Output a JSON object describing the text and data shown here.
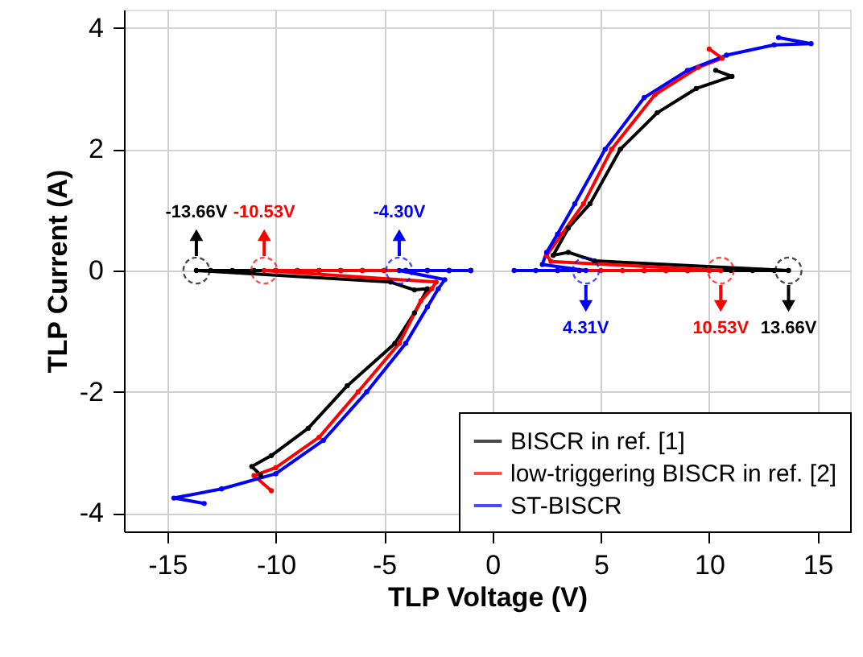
{
  "chart_data": {
    "type": "line",
    "xlabel": "TLP Voltage (V)",
    "ylabel": "TLP Current (A)",
    "xlim": [
      -17,
      16.5
    ],
    "ylim": [
      -4.3,
      4.3
    ],
    "xticks": [
      -15,
      -10,
      -5,
      0,
      5,
      10,
      15
    ],
    "yticks": [
      -4,
      -2,
      0,
      2,
      4
    ],
    "grid": true,
    "legend": "bottom right",
    "marker": "circle",
    "line_style": "solid",
    "series": [
      {
        "name": "BISCR in ref. [1]",
        "color": "#000000",
        "x": [
          7,
          8,
          9,
          10,
          11,
          12,
          13,
          13.66,
          4.7,
          3.5,
          2.8,
          3.5,
          4.5,
          5.9,
          7.6,
          9.4,
          11.05,
          10.3,
          0,
          -1,
          -2,
          -3,
          -4,
          -5,
          -6,
          -7,
          -8,
          -9,
          -10,
          -11,
          -12,
          -13,
          -13.66,
          -4.7,
          -3.6,
          -3.0,
          -3.6,
          -4.5,
          -6.7,
          -8.5,
          -10.2,
          -11.1,
          -10.7
        ],
        "values": [
          0,
          0,
          0,
          0,
          0,
          0,
          0,
          0,
          0.16,
          0.3,
          0.25,
          0.7,
          1.1,
          2.0,
          2.6,
          3.0,
          3.2,
          3.3,
          null,
          0,
          0,
          0,
          0,
          0,
          0,
          0,
          0,
          0,
          0,
          0,
          0,
          0,
          0,
          -0.19,
          -0.32,
          -0.3,
          -0.7,
          -1.2,
          -1.9,
          -2.6,
          -3.05,
          -3.23,
          -3.37
        ]
      },
      {
        "name": "low-triggering BISCR in ref. [2]",
        "color": "#ff0000",
        "x": [
          3,
          4,
          5,
          6,
          7,
          8,
          9,
          10,
          10.53,
          2.7,
          2.5,
          3.2,
          4.2,
          5.5,
          7.5,
          9.5,
          10.6,
          10.0,
          0,
          -1,
          -2,
          -3,
          -4,
          -5,
          -6,
          -7,
          -8,
          -9,
          -10,
          -10.53,
          -2.6,
          -2.8,
          -3.3,
          -4.3,
          -6.2,
          -8.0,
          -10.0,
          -11.0,
          -10.2
        ],
        "values": [
          0,
          0,
          0,
          0,
          0,
          0,
          0,
          0,
          0,
          0.15,
          0.25,
          0.6,
          1.1,
          2.0,
          2.9,
          3.35,
          3.5,
          3.65,
          null,
          0,
          0,
          0,
          0,
          0,
          0,
          0,
          0,
          0,
          0,
          0,
          -0.19,
          -0.3,
          -0.5,
          -1.2,
          -2.0,
          -2.75,
          -3.25,
          -3.38,
          -3.63
        ]
      },
      {
        "name": "ST-BISCR",
        "color": "#0000ff",
        "x": [
          1,
          2,
          3,
          4,
          4.31,
          2.3,
          2.5,
          3.0,
          3.8,
          5.2,
          7.0,
          9.0,
          10.8,
          13,
          14.7,
          13.2,
          0,
          -1,
          -2,
          -3,
          -4,
          -4.3,
          -2.2,
          -2.5,
          -3.0,
          -4.0,
          -5.8,
          -7.8,
          -10.0,
          -12.5,
          -14.7,
          -13.3
        ],
        "values": [
          0,
          0,
          0,
          0,
          0,
          0.1,
          0.3,
          0.6,
          1.1,
          2.0,
          2.85,
          3.3,
          3.55,
          3.72,
          3.74,
          3.84,
          null,
          0,
          0,
          0,
          0,
          0,
          -0.15,
          -0.3,
          -0.6,
          -1.2,
          -2.0,
          -2.8,
          -3.35,
          -3.6,
          -3.75,
          -3.84
        ]
      }
    ],
    "annotations": [
      {
        "text": "-13.66V",
        "x": -13.66,
        "y": 0
      },
      {
        "text": "-10.53V",
        "x": -10.53,
        "y": 0
      },
      {
        "text": "-4.30V",
        "x": -4.3,
        "y": 0
      },
      {
        "text": "13.66V",
        "x": 13.66,
        "y": 0
      },
      {
        "text": "10.53V",
        "x": 10.53,
        "y": 0
      },
      {
        "text": "4.31V",
        "x": 4.31,
        "y": 0
      }
    ]
  }
}
